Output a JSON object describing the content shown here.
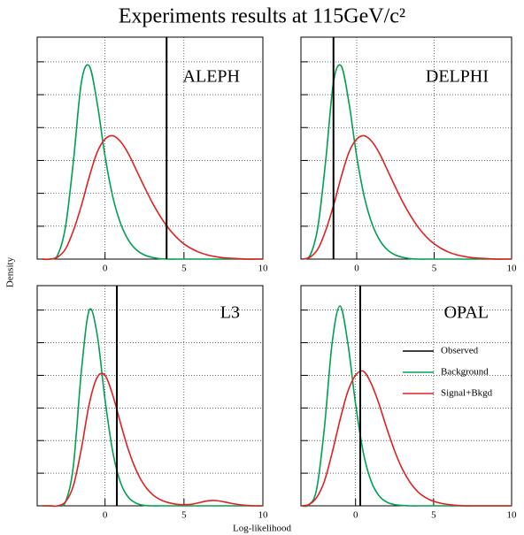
{
  "title": "Experiments results at 115GeV/c²",
  "xlabel": "Log-likelihood",
  "ylabel": "Density",
  "chart_data": [
    {
      "type": "line",
      "label": "ALEPH",
      "x": [
        -4,
        -3.5,
        -3,
        -2.5,
        -2,
        -1.5,
        -1,
        -0.5,
        0,
        0.5,
        1,
        1.5,
        2,
        2.5,
        3,
        3.5,
        4,
        4.5,
        5,
        5.5,
        6,
        6.5,
        7,
        7.5,
        8,
        8.5,
        9,
        9.5,
        10
      ],
      "xlim": [
        -4.3,
        10
      ],
      "xticks": [
        0,
        5,
        10
      ],
      "ylim": [
        0,
        0.54
      ],
      "yticks": [
        0.08,
        0.16,
        0.24,
        0.32,
        0.4,
        0.48
      ],
      "grid": true,
      "series": [
        {
          "color": "#00a050",
          "values": [
            0,
            0,
            0.01,
            0.08,
            0.24,
            0.43,
            0.47,
            0.38,
            0.25,
            0.15,
            0.085,
            0.045,
            0.022,
            0.01,
            0.004,
            0.001,
            0,
            0,
            0,
            0,
            0,
            0,
            0,
            0,
            0,
            0,
            0,
            0,
            0
          ]
        },
        {
          "color": "#e02020",
          "values": [
            0,
            0,
            0.005,
            0.025,
            0.07,
            0.13,
            0.2,
            0.26,
            0.292,
            0.3,
            0.285,
            0.255,
            0.215,
            0.175,
            0.137,
            0.104,
            0.076,
            0.054,
            0.037,
            0.025,
            0.016,
            0.01,
            0.006,
            0.003,
            0.002,
            0.001,
            0,
            0,
            0
          ]
        }
      ],
      "observed": {
        "value": 3.9,
        "color": "#000000"
      }
    },
    {
      "type": "line",
      "label": "DELPHI",
      "x": [
        -3.5,
        -3,
        -2.5,
        -2,
        -1.5,
        -1,
        -0.5,
        0,
        0.5,
        1,
        1.5,
        2,
        2.5,
        3,
        3.5,
        4,
        4.5,
        5,
        5.5,
        6,
        6.5,
        7,
        7.5,
        8,
        8.5,
        9,
        9.5,
        10
      ],
      "xlim": [
        -3.6,
        10
      ],
      "xticks": [
        0,
        5,
        10
      ],
      "ylim": [
        0,
        0.54
      ],
      "yticks": [
        0.08,
        0.16,
        0.24,
        0.32,
        0.4,
        0.48
      ],
      "grid": true,
      "series": [
        {
          "color": "#00a050",
          "values": [
            0,
            0.01,
            0.08,
            0.24,
            0.43,
            0.47,
            0.38,
            0.25,
            0.15,
            0.085,
            0.045,
            0.022,
            0.01,
            0.004,
            0.001,
            0,
            0,
            0,
            0,
            0,
            0,
            0,
            0,
            0,
            0,
            0,
            0,
            0
          ]
        },
        {
          "color": "#e02020",
          "values": [
            0,
            0.005,
            0.025,
            0.07,
            0.13,
            0.2,
            0.26,
            0.292,
            0.3,
            0.285,
            0.255,
            0.215,
            0.175,
            0.137,
            0.104,
            0.076,
            0.054,
            0.037,
            0.025,
            0.016,
            0.01,
            0.006,
            0.003,
            0.002,
            0.001,
            0,
            0,
            0
          ]
        }
      ],
      "observed": {
        "value": -1.5,
        "color": "#000000"
      }
    },
    {
      "type": "line",
      "label": "L3",
      "x": [
        -4,
        -3.5,
        -3,
        -2.5,
        -2,
        -1.5,
        -1,
        -0.5,
        0,
        0.5,
        1,
        1.5,
        2,
        2.5,
        3,
        3.5,
        4,
        4.5,
        5,
        5.5,
        6,
        6.5,
        7,
        7.5,
        8,
        8.5,
        9,
        9.5,
        10
      ],
      "xlim": [
        -4.3,
        10
      ],
      "xticks": [
        0,
        5,
        10
      ],
      "ylim": [
        0,
        0.54
      ],
      "yticks": [
        0.08,
        0.16,
        0.24,
        0.32,
        0.4,
        0.48
      ],
      "grid": true,
      "series": [
        {
          "color": "#00a050",
          "values": [
            0,
            0,
            0,
            0.01,
            0.1,
            0.33,
            0.48,
            0.42,
            0.26,
            0.13,
            0.055,
            0.02,
            0.006,
            0.001,
            0,
            0,
            0,
            0,
            0,
            0,
            0,
            0,
            0,
            0,
            0,
            0,
            0,
            0,
            0
          ]
        },
        {
          "color": "#e02020",
          "values": [
            0,
            0,
            0,
            0.01,
            0.05,
            0.14,
            0.25,
            0.315,
            0.32,
            0.27,
            0.2,
            0.135,
            0.085,
            0.05,
            0.028,
            0.015,
            0.008,
            0.004,
            0.003,
            0.004,
            0.008,
            0.012,
            0.013,
            0.01,
            0.006,
            0.003,
            0.001,
            0,
            0
          ]
        }
      ],
      "observed": {
        "value": 0.75,
        "color": "#000000"
      }
    },
    {
      "type": "line",
      "label": "OPAL",
      "x": [
        -3.5,
        -3,
        -2.5,
        -2,
        -1.5,
        -1,
        -0.5,
        0,
        0.5,
        1,
        1.5,
        2,
        2.5,
        3,
        3.5,
        4,
        4.5,
        5,
        5.5,
        6,
        6.5,
        7,
        7.5,
        8,
        8.5,
        9,
        9.5,
        10
      ],
      "xlim": [
        -3.5,
        10
      ],
      "xticks": [
        0,
        5,
        10
      ],
      "ylim": [
        0,
        0.54
      ],
      "yticks": [
        0.08,
        0.16,
        0.24,
        0.32,
        0.4,
        0.48
      ],
      "grid": true,
      "legend": "right",
      "series": [
        {
          "name": "Background",
          "color": "#00a050",
          "values": [
            0,
            0.002,
            0.04,
            0.19,
            0.4,
            0.49,
            0.4,
            0.25,
            0.13,
            0.06,
            0.025,
            0.009,
            0.003,
            0.001,
            0,
            0,
            0,
            0,
            0,
            0,
            0,
            0,
            0,
            0,
            0,
            0,
            0,
            0
          ]
        },
        {
          "name": "Signal+Bkgd",
          "color": "#e02020",
          "values": [
            0,
            0.003,
            0.02,
            0.06,
            0.13,
            0.21,
            0.28,
            0.32,
            0.33,
            0.3,
            0.25,
            0.19,
            0.135,
            0.09,
            0.057,
            0.034,
            0.02,
            0.011,
            0.006,
            0.003,
            0.001,
            0,
            0,
            0,
            0,
            0,
            0,
            0
          ]
        }
      ],
      "observed": {
        "name": "Observed",
        "value": 0.3,
        "color": "#000000"
      }
    }
  ]
}
